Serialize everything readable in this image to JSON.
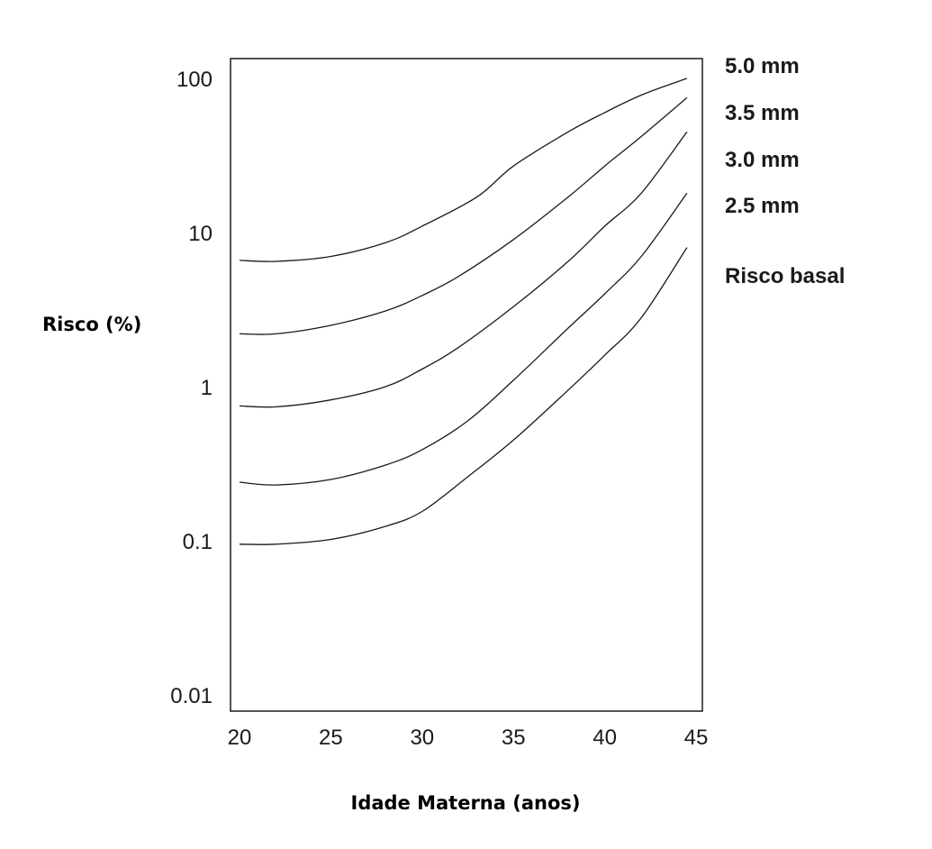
{
  "chart_data": {
    "type": "line",
    "xlabel": "Idade Materna (anos)",
    "ylabel": "Risco (%)",
    "xlim": [
      20,
      45
    ],
    "ylim": [
      0.01,
      100
    ],
    "yscale": "log",
    "x_ticks": [
      "20",
      "25",
      "30",
      "35",
      "40",
      "45"
    ],
    "y_ticks": [
      "0.01",
      "0.1",
      "1",
      "10",
      "100"
    ],
    "grid": false,
    "legend": "right",
    "series": [
      {
        "name": "5.0 mm",
        "x": [
          20,
          22,
          25,
          28,
          30,
          33,
          35,
          38,
          40,
          42,
          44.5
        ],
        "values": [
          6.6,
          6.5,
          7,
          8.6,
          11,
          17,
          27,
          45,
          60,
          78,
          100
        ]
      },
      {
        "name": "3.5 mm",
        "x": [
          20,
          22,
          25,
          28,
          30,
          32,
          35,
          38,
          40,
          42,
          44.5
        ],
        "values": [
          2.2,
          2.2,
          2.5,
          3.1,
          3.9,
          5.2,
          9,
          17,
          27,
          42,
          75
        ]
      },
      {
        "name": "3.0 mm",
        "x": [
          20,
          22,
          25,
          28,
          30,
          32,
          35,
          38,
          40,
          42,
          44.5
        ],
        "values": [
          0.75,
          0.74,
          0.82,
          1.0,
          1.3,
          1.8,
          3.3,
          6.5,
          11,
          18,
          45
        ]
      },
      {
        "name": "2.5 mm",
        "x": [
          20,
          22,
          25,
          28,
          30,
          32.5,
          35,
          38,
          40,
          42,
          44.5
        ],
        "values": [
          0.24,
          0.23,
          0.25,
          0.31,
          0.39,
          0.6,
          1.1,
          2.4,
          4,
          7,
          18
        ]
      },
      {
        "name": "Risco basal",
        "x": [
          20,
          22,
          25,
          28,
          30,
          32.5,
          35,
          38,
          40,
          42,
          44.5
        ],
        "values": [
          0.095,
          0.095,
          0.102,
          0.124,
          0.155,
          0.26,
          0.45,
          0.95,
          1.6,
          2.8,
          8
        ]
      }
    ]
  }
}
